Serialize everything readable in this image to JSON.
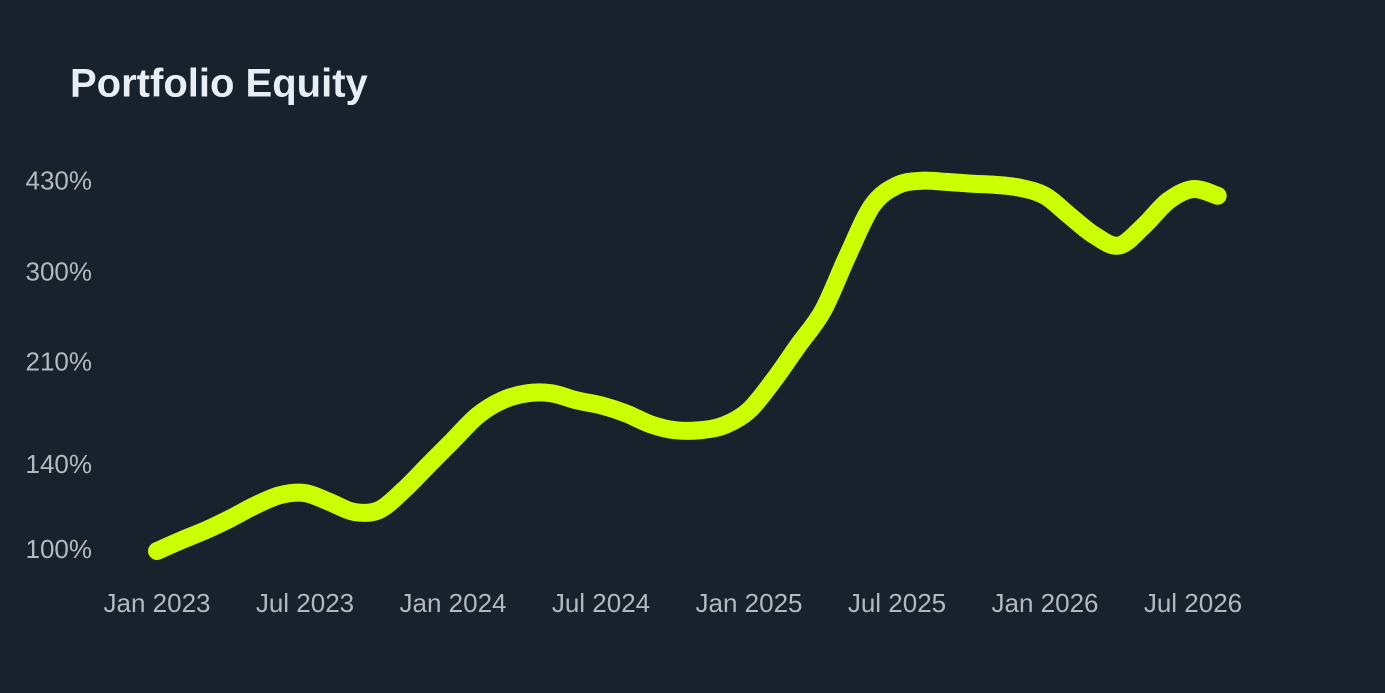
{
  "chart_data": {
    "type": "line",
    "title": "Portfolio Equity",
    "categories": [
      "Jan 2023",
      null,
      null,
      null,
      null,
      null,
      "Jul 2023",
      null,
      null,
      null,
      null,
      null,
      "Jan 2024",
      null,
      null,
      null,
      null,
      null,
      "Jul 2024",
      null,
      null,
      null,
      null,
      null,
      "Jan 2025",
      null,
      null,
      null,
      null,
      null,
      "Jul 2025",
      null,
      null,
      null,
      null,
      null,
      "Jan 2026",
      null,
      null,
      null,
      null,
      null,
      "Jul 2026",
      null
    ],
    "series": [
      {
        "color": "#ccff00",
        "values": [
          100,
          104.4,
          108.7,
          113.9,
          119.9,
          124.8,
          125.8,
          121.4,
          116.7,
          117.6,
          127.3,
          140.5,
          155,
          171,
          181.6,
          186.7,
          186.7,
          181.6,
          178,
          172.5,
          165.2,
          161.3,
          161.3,
          164.5,
          174.5,
          196.6,
          225.8,
          259,
          322,
          392.6,
          425,
          433,
          431,
          428,
          426,
          421,
          408,
          377,
          349,
          335,
          362,
          400,
          419,
          408
        ]
      }
    ],
    "ylim": [
      95,
      450
    ],
    "log_y": true,
    "yticks": [
      {
        "value": 100,
        "label": "100%"
      },
      {
        "value": 140,
        "label": "140%"
      },
      {
        "value": 210,
        "label": "210%"
      },
      {
        "value": 300,
        "label": "300%"
      },
      {
        "value": 430,
        "label": "430%"
      }
    ],
    "grid": false
  }
}
